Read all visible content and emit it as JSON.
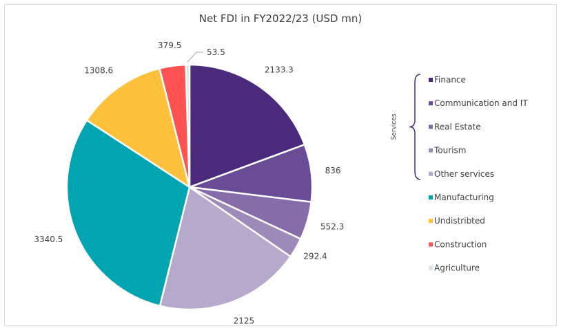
{
  "chart_data": {
    "type": "pie",
    "title": "Net FDI in FY2022/23 (USD mn)",
    "slices": [
      {
        "label": "Finance",
        "value": 2133.3,
        "color": "#4b2a7b"
      },
      {
        "label": "Communication and IT",
        "value": 836,
        "color": "#6a4c96"
      },
      {
        "label": "Real Estate",
        "value": 552.3,
        "color": "#866ca9"
      },
      {
        "label": "Tourism",
        "value": 292.4,
        "color": "#9e8ab8"
      },
      {
        "label": "Other services",
        "value": 2125,
        "color": "#b7a9cc"
      },
      {
        "label": "Manufacturing",
        "value": 3340.5,
        "color": "#00a5b1"
      },
      {
        "label": "Undistribted",
        "value": 1308.6,
        "color": "#ffc13b"
      },
      {
        "label": "Construction",
        "value": 379.5,
        "color": "#ff5252"
      },
      {
        "label": "Agriculture",
        "value": 53.5,
        "color": "#d6e3ea"
      }
    ],
    "data_labels": [
      "2133.3",
      "836",
      "552.3",
      "292.4",
      "2125",
      "3340.5",
      "1308.6",
      "379.5",
      "53.5"
    ],
    "legend_position": "right",
    "legend_group_label": "Services",
    "legend_group_brace_color": "#4b2a7b"
  }
}
